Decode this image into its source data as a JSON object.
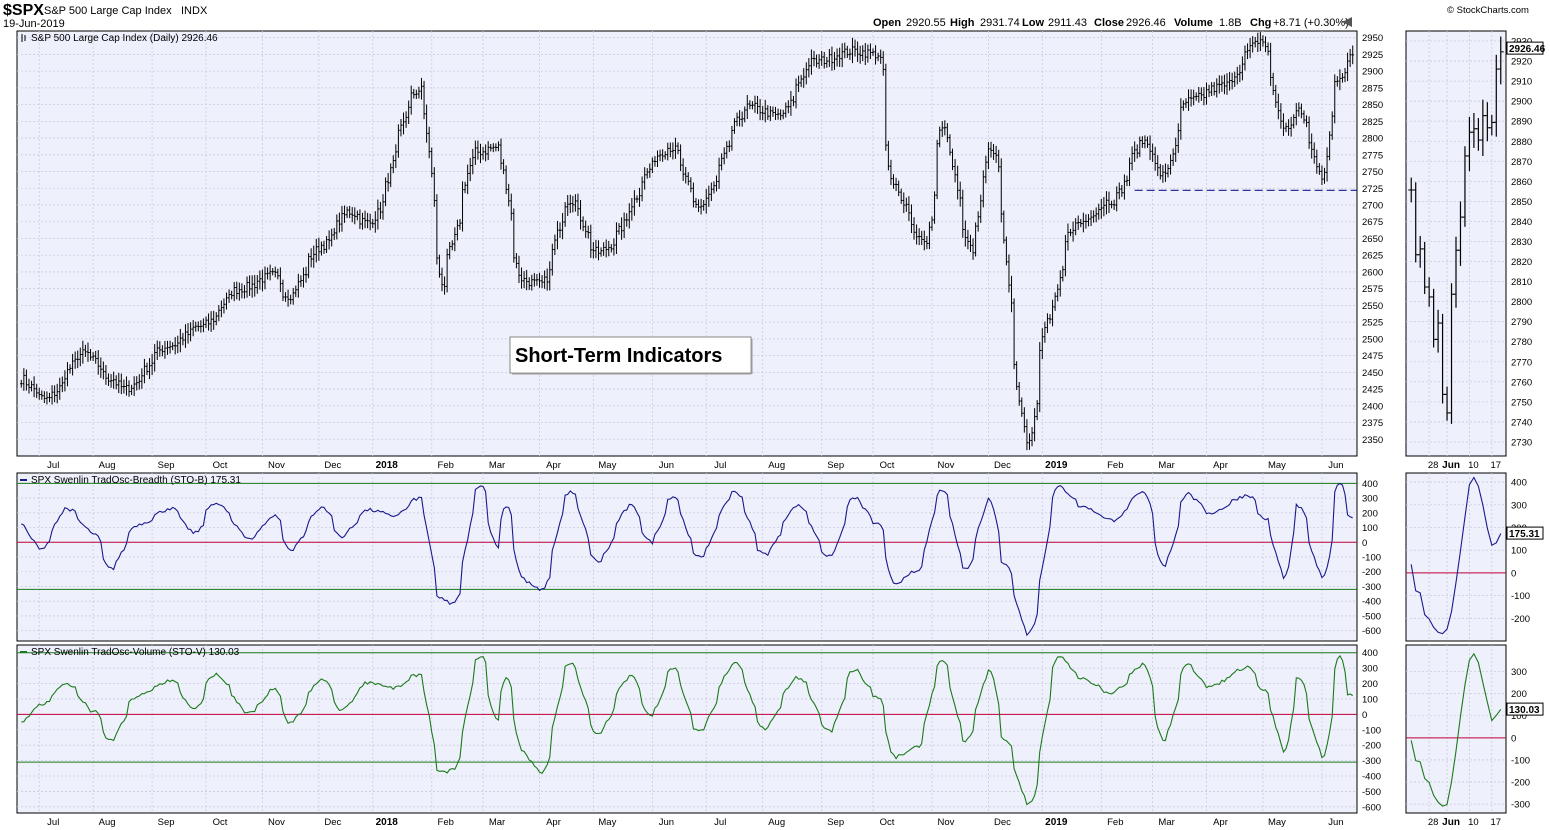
{
  "header": {
    "symbol": "$SPX",
    "name": "S&P 500 Large Cap Index",
    "exchange": "INDX",
    "date": "19-Jun-2019",
    "open_label": "Open",
    "open": "2920.55",
    "high_label": "High",
    "high": "2931.74",
    "low_label": "Low",
    "low": "2911.43",
    "close_label": "Close",
    "close": "2926.46",
    "volume_label": "Volume",
    "volume": "1.8B",
    "chg_label": "Chg",
    "chg": "+8.71 (+0.30%)",
    "brand": "© StockCharts.com"
  },
  "annotation_box": "Short-Term Indicators",
  "colors": {
    "background": "#eef0fb",
    "grid": "#c9cbe4",
    "price": "#000000",
    "breadth": "#1a1a8c",
    "volume_line": "#1b7a1b",
    "zero_line": "#c0003a",
    "band_line": "#1b7a1b",
    "support_line": "#1a1a8c"
  },
  "chart_data": [
    {
      "type": "ohlc",
      "title": "S&P 500 Large Cap Index (Daily) 2926.46",
      "current_value": "2926.46",
      "ylim": [
        2325,
        2960
      ],
      "yticks": [
        "2950",
        "2925",
        "2900",
        "2875",
        "2850",
        "2825",
        "2800",
        "2775",
        "2750",
        "2725",
        "2700",
        "2675",
        "2650",
        "2625",
        "2600",
        "2575",
        "2550",
        "2525",
        "2500",
        "2475",
        "2450",
        "2425",
        "2400",
        "2375",
        "2350"
      ],
      "x_labels": [
        "Jul",
        "Aug",
        "Sep",
        "Oct",
        "Nov",
        "Dec",
        "2018",
        "Feb",
        "Mar",
        "Apr",
        "May",
        "Jun",
        "Jul",
        "Aug",
        "Sep",
        "Oct",
        "Nov",
        "Dec",
        "2019",
        "Feb",
        "Mar",
        "Apr",
        "May",
        "Jun"
      ],
      "x_label_bold": [
        "2018",
        "2019"
      ],
      "series_anchors": [
        [
          "2017-06-22",
          2440
        ],
        [
          "2017-07-06",
          2410
        ],
        [
          "2017-07-27",
          2478
        ],
        [
          "2017-08-11",
          2440
        ],
        [
          "2017-08-18",
          2425
        ],
        [
          "2017-09-11",
          2490
        ],
        [
          "2017-09-29",
          2519
        ],
        [
          "2017-10-20",
          2575
        ],
        [
          "2017-11-07",
          2595
        ],
        [
          "2017-11-15",
          2565
        ],
        [
          "2017-12-04",
          2640
        ],
        [
          "2017-12-18",
          2690
        ],
        [
          "2017-12-29",
          2673
        ],
        [
          "2018-01-26",
          2872
        ],
        [
          "2018-02-08",
          2581
        ],
        [
          "2018-02-09",
          2619
        ],
        [
          "2018-02-26",
          2779
        ],
        [
          "2018-03-09",
          2786
        ],
        [
          "2018-03-23",
          2588
        ],
        [
          "2018-04-02",
          2581
        ],
        [
          "2018-04-18",
          2708
        ],
        [
          "2018-05-03",
          2629
        ],
        [
          "2018-06-12",
          2786
        ],
        [
          "2018-06-27",
          2699
        ],
        [
          "2018-07-25",
          2846
        ],
        [
          "2018-08-10",
          2833
        ],
        [
          "2018-08-29",
          2914
        ],
        [
          "2018-09-20",
          2930
        ],
        [
          "2018-10-03",
          2925
        ],
        [
          "2018-10-11",
          2728
        ],
        [
          "2018-10-29",
          2641
        ],
        [
          "2018-11-07",
          2813
        ],
        [
          "2018-11-23",
          2633
        ],
        [
          "2018-12-03",
          2790
        ],
        [
          "2018-12-24",
          2351
        ],
        [
          "2019-01-04",
          2531
        ],
        [
          "2019-01-18",
          2670
        ],
        [
          "2019-02-08",
          2707
        ],
        [
          "2019-02-25",
          2796
        ],
        [
          "2019-03-08",
          2743
        ],
        [
          "2019-03-21",
          2855
        ],
        [
          "2019-04-09",
          2878
        ],
        [
          "2019-04-30",
          2946
        ],
        [
          "2019-05-13",
          2812
        ],
        [
          "2019-05-20",
          2840
        ],
        [
          "2019-06-03",
          2744
        ],
        [
          "2019-06-10",
          2886
        ],
        [
          "2019-06-19",
          2926
        ]
      ],
      "support_line": 2722
    },
    {
      "type": "line",
      "title": "SPX Swenlin TradOsc-Breadth (STO-B) 175.31",
      "current_value": "175.31",
      "ylim": [
        -670,
        470
      ],
      "yticks": [
        "400",
        "300",
        "200",
        "100",
        "0",
        "-100",
        "-200",
        "-300",
        "-400",
        "-500",
        "-600"
      ],
      "reference_lines": {
        "zero": 0,
        "upper": 400,
        "lower": -320
      },
      "series_anchors": [
        [
          "2017-06-22",
          130
        ],
        [
          "2017-07-03",
          -50
        ],
        [
          "2017-07-17",
          230
        ],
        [
          "2017-08-01",
          60
        ],
        [
          "2017-08-10",
          -180
        ],
        [
          "2017-08-25",
          120
        ],
        [
          "2017-09-12",
          230
        ],
        [
          "2017-09-25",
          60
        ],
        [
          "2017-10-06",
          270
        ],
        [
          "2017-10-25",
          30
        ],
        [
          "2017-11-08",
          180
        ],
        [
          "2017-11-16",
          -50
        ],
        [
          "2017-12-04",
          240
        ],
        [
          "2017-12-14",
          40
        ],
        [
          "2017-12-29",
          220
        ],
        [
          "2018-01-12",
          180
        ],
        [
          "2018-01-26",
          300
        ],
        [
          "2018-02-06",
          -380
        ],
        [
          "2018-02-13",
          -420
        ],
        [
          "2018-02-28",
          390
        ],
        [
          "2018-03-09",
          -30
        ],
        [
          "2018-03-14",
          250
        ],
        [
          "2018-03-23",
          -250
        ],
        [
          "2018-04-02",
          -330
        ],
        [
          "2018-04-18",
          340
        ],
        [
          "2018-05-03",
          -130
        ],
        [
          "2018-05-21",
          250
        ],
        [
          "2018-06-01",
          0
        ],
        [
          "2018-06-13",
          310
        ],
        [
          "2018-06-27",
          -100
        ],
        [
          "2018-07-17",
          340
        ],
        [
          "2018-08-02",
          -80
        ],
        [
          "2018-08-20",
          250
        ],
        [
          "2018-09-07",
          -100
        ],
        [
          "2018-09-20",
          300
        ],
        [
          "2018-10-03",
          120
        ],
        [
          "2018-10-12",
          -280
        ],
        [
          "2018-10-24",
          -200
        ],
        [
          "2018-11-07",
          350
        ],
        [
          "2018-11-20",
          -180
        ],
        [
          "2018-12-03",
          300
        ],
        [
          "2018-12-11",
          -150
        ],
        [
          "2018-12-24",
          -620
        ],
        [
          "2019-01-10",
          380
        ],
        [
          "2019-01-23",
          240
        ],
        [
          "2019-02-08",
          150
        ],
        [
          "2019-02-25",
          340
        ],
        [
          "2019-03-08",
          -160
        ],
        [
          "2019-03-21",
          330
        ],
        [
          "2019-04-02",
          200
        ],
        [
          "2019-04-23",
          320
        ],
        [
          "2019-05-02",
          160
        ],
        [
          "2019-05-13",
          -250
        ],
        [
          "2019-05-20",
          250
        ],
        [
          "2019-06-03",
          -250
        ],
        [
          "2019-06-12",
          410
        ],
        [
          "2019-06-17",
          180
        ],
        [
          "2019-06-19",
          175
        ]
      ]
    },
    {
      "type": "line",
      "title": "SPX Swenlin TradOsc-Volume (STO-V) 130.03",
      "current_value": "130.03",
      "ylim": [
        -640,
        450
      ],
      "yticks": [
        "400",
        "300",
        "200",
        "100",
        "0",
        "-100",
        "-200",
        "-300",
        "-400",
        "-500",
        "-600"
      ],
      "reference_lines": {
        "zero": 0,
        "upper": 400,
        "lower": -310
      },
      "series_anchors": [
        [
          "2017-06-22",
          -50
        ],
        [
          "2017-07-03",
          60
        ],
        [
          "2017-07-17",
          200
        ],
        [
          "2017-08-01",
          20
        ],
        [
          "2017-08-10",
          -170
        ],
        [
          "2017-08-25",
          120
        ],
        [
          "2017-09-12",
          220
        ],
        [
          "2017-09-25",
          30
        ],
        [
          "2017-10-06",
          260
        ],
        [
          "2017-10-25",
          10
        ],
        [
          "2017-11-08",
          160
        ],
        [
          "2017-11-16",
          -60
        ],
        [
          "2017-12-04",
          230
        ],
        [
          "2017-12-14",
          30
        ],
        [
          "2017-12-29",
          210
        ],
        [
          "2018-01-12",
          170
        ],
        [
          "2018-01-26",
          260
        ],
        [
          "2018-02-06",
          -380
        ],
        [
          "2018-02-13",
          -360
        ],
        [
          "2018-02-28",
          380
        ],
        [
          "2018-03-09",
          -40
        ],
        [
          "2018-03-14",
          240
        ],
        [
          "2018-03-23",
          -240
        ],
        [
          "2018-04-02",
          -380
        ],
        [
          "2018-04-18",
          330
        ],
        [
          "2018-05-03",
          -120
        ],
        [
          "2018-05-21",
          250
        ],
        [
          "2018-06-01",
          -10
        ],
        [
          "2018-06-13",
          300
        ],
        [
          "2018-06-27",
          -110
        ],
        [
          "2018-07-17",
          330
        ],
        [
          "2018-08-02",
          -90
        ],
        [
          "2018-08-20",
          240
        ],
        [
          "2018-09-07",
          -110
        ],
        [
          "2018-09-20",
          290
        ],
        [
          "2018-10-03",
          110
        ],
        [
          "2018-10-12",
          -280
        ],
        [
          "2018-10-24",
          -210
        ],
        [
          "2018-11-07",
          340
        ],
        [
          "2018-11-20",
          -170
        ],
        [
          "2018-12-03",
          290
        ],
        [
          "2018-12-11",
          -160
        ],
        [
          "2018-12-24",
          -590
        ],
        [
          "2019-01-10",
          370
        ],
        [
          "2019-01-23",
          230
        ],
        [
          "2019-02-08",
          140
        ],
        [
          "2019-02-25",
          330
        ],
        [
          "2019-03-08",
          -170
        ],
        [
          "2019-03-21",
          320
        ],
        [
          "2019-04-02",
          180
        ],
        [
          "2019-04-23",
          310
        ],
        [
          "2019-05-02",
          150
        ],
        [
          "2019-05-13",
          -250
        ],
        [
          "2019-05-20",
          240
        ],
        [
          "2019-06-03",
          -280
        ],
        [
          "2019-06-12",
          370
        ],
        [
          "2019-06-17",
          120
        ],
        [
          "2019-06-19",
          130
        ]
      ]
    },
    {
      "type": "ohlc",
      "title": "",
      "current_value": "2926.46",
      "ylim": [
        2723,
        2935
      ],
      "yticks": [
        "2930",
        "2920",
        "2910",
        "2900",
        "2890",
        "2880",
        "2870",
        "2860",
        "2850",
        "2840",
        "2830",
        "2820",
        "2810",
        "2800",
        "2790",
        "2780",
        "2770",
        "2760",
        "2750",
        "2740",
        "2730"
      ],
      "x_labels": [
        "28",
        "Jun",
        "10",
        "17"
      ],
      "x_label_bold": [
        "Jun"
      ],
      "series_anchors": [
        [
          "2019-05-22",
          2856
        ],
        [
          "2019-05-23",
          2822
        ],
        [
          "2019-05-24",
          2826
        ],
        [
          "2019-05-28",
          2802
        ],
        [
          "2019-05-29",
          2783
        ],
        [
          "2019-05-30",
          2788
        ],
        [
          "2019-05-31",
          2752
        ],
        [
          "2019-06-03",
          2744
        ],
        [
          "2019-06-04",
          2803
        ],
        [
          "2019-06-05",
          2826
        ],
        [
          "2019-06-06",
          2843
        ],
        [
          "2019-06-07",
          2873
        ],
        [
          "2019-06-10",
          2886
        ],
        [
          "2019-06-11",
          2885
        ],
        [
          "2019-06-12",
          2879
        ],
        [
          "2019-06-13",
          2891
        ],
        [
          "2019-06-14",
          2887
        ],
        [
          "2019-06-17",
          2889
        ],
        [
          "2019-06-18",
          2917
        ],
        [
          "2019-06-19",
          2926
        ]
      ]
    },
    {
      "type": "line",
      "title": "",
      "current_value": "175.31",
      "ylim": [
        -300,
        440
      ],
      "yticks": [
        "400",
        "300",
        "200",
        "100",
        "0",
        "-100",
        "-200"
      ],
      "reference_lines": {
        "zero": 0
      },
      "series_anchors": [
        [
          "2019-05-22",
          40
        ],
        [
          "2019-05-23",
          -80
        ],
        [
          "2019-05-24",
          -90
        ],
        [
          "2019-05-28",
          -200
        ],
        [
          "2019-05-29",
          -240
        ],
        [
          "2019-05-30",
          -260
        ],
        [
          "2019-05-31",
          -265
        ],
        [
          "2019-06-03",
          -250
        ],
        [
          "2019-06-04",
          -170
        ],
        [
          "2019-06-05",
          -40
        ],
        [
          "2019-06-06",
          100
        ],
        [
          "2019-06-07",
          250
        ],
        [
          "2019-06-10",
          390
        ],
        [
          "2019-06-11",
          420
        ],
        [
          "2019-06-12",
          380
        ],
        [
          "2019-06-13",
          300
        ],
        [
          "2019-06-14",
          200
        ],
        [
          "2019-06-17",
          120
        ],
        [
          "2019-06-18",
          130
        ],
        [
          "2019-06-19",
          175
        ]
      ]
    },
    {
      "type": "line",
      "title": "",
      "current_value": "130.03",
      "ylim": [
        -340,
        420
      ],
      "yticks": [
        "300",
        "200",
        "100",
        "0",
        "-100",
        "-200",
        "-300"
      ],
      "reference_lines": {
        "zero": 0
      },
      "series_anchors": [
        [
          "2019-05-22",
          -10
        ],
        [
          "2019-05-23",
          -100
        ],
        [
          "2019-05-24",
          -110
        ],
        [
          "2019-05-28",
          -200
        ],
        [
          "2019-05-29",
          -260
        ],
        [
          "2019-05-30",
          -290
        ],
        [
          "2019-05-31",
          -310
        ],
        [
          "2019-06-03",
          -300
        ],
        [
          "2019-06-04",
          -200
        ],
        [
          "2019-06-05",
          -60
        ],
        [
          "2019-06-06",
          100
        ],
        [
          "2019-06-07",
          240
        ],
        [
          "2019-06-10",
          350
        ],
        [
          "2019-06-11",
          380
        ],
        [
          "2019-06-12",
          340
        ],
        [
          "2019-06-13",
          250
        ],
        [
          "2019-06-14",
          160
        ],
        [
          "2019-06-17",
          80
        ],
        [
          "2019-06-18",
          100
        ],
        [
          "2019-06-19",
          130
        ]
      ]
    }
  ]
}
